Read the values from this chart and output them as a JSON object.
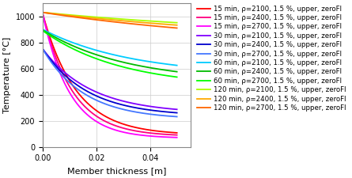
{
  "title": "",
  "xlabel": "Member thickness [m]",
  "ylabel": "Temperature [°C]",
  "xlim": [
    0,
    0.055
  ],
  "ylim": [
    0,
    1100
  ],
  "x_max": 0.05,
  "grid": true,
  "series": [
    {
      "label": "15 min, ρ=2100, 1.5 %, upper, zeroFl",
      "color": "#ff0000",
      "t0": 1020,
      "t1": 90,
      "k": 80
    },
    {
      "label": "15 min, ρ=2400, 1.5 %, upper, zeroFl",
      "color": "#ff007f",
      "t0": 1020,
      "t1": 80,
      "k": 90
    },
    {
      "label": "15 min, ρ=2700, 1.5 %, upper, zeroFl",
      "color": "#ff00ff",
      "t0": 1020,
      "t1": 65,
      "k": 100
    },
    {
      "label": "30 min, ρ=2100, 1.5 %, upper, zeroFl",
      "color": "#8000ff",
      "t0": 750,
      "t1": 255,
      "k": 55
    },
    {
      "label": "30 min, ρ=2400, 1.5 %, upper, zeroFl",
      "color": "#0000cc",
      "t0": 750,
      "t1": 235,
      "k": 60
    },
    {
      "label": "30 min, ρ=2700, 1.5 %, upper, zeroFl",
      "color": "#4477ff",
      "t0": 750,
      "t1": 210,
      "k": 65
    },
    {
      "label": "60 min, ρ=2100, 1.5 %, upper, zeroFl",
      "color": "#00ccff",
      "t0": 900,
      "t1": 545,
      "k": 30
    },
    {
      "label": "60 min, ρ=2400, 1.5 %, upper, zeroFl",
      "color": "#00bb00",
      "t0": 895,
      "t1": 495,
      "k": 32
    },
    {
      "label": "60 min, ρ=2700, 1.5 %, upper, zeroFl",
      "color": "#00ff00",
      "t0": 890,
      "t1": 455,
      "k": 34
    },
    {
      "label": "120 min, ρ=2100, 1.5 %, upper, zeroFl",
      "color": "#aaff00",
      "t0": 1030,
      "t1": 830,
      "k": 10
    },
    {
      "label": "120 min, ρ=2400, 1.5 %, upper, zeroFl",
      "color": "#ffaa00",
      "t0": 1030,
      "t1": 800,
      "k": 11
    },
    {
      "label": "120 min, ρ=2700, 1.5 %, upper, zeroFl",
      "color": "#ff6600",
      "t0": 1030,
      "t1": 765,
      "k": 12
    }
  ],
  "legend_fontsize": 6.2,
  "axis_fontsize": 8,
  "tick_fontsize": 7,
  "linewidth": 1.3
}
